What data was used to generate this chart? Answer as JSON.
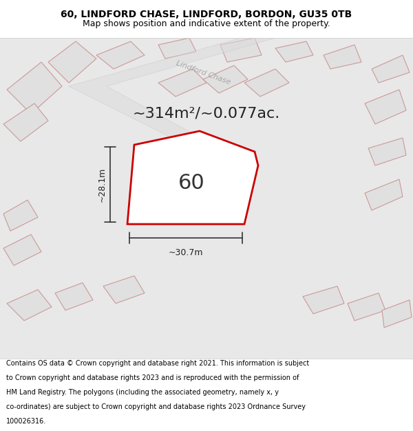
{
  "title_line1": "60, LINDFORD CHASE, LINDFORD, BORDON, GU35 0TB",
  "title_line2": "Map shows position and indicative extent of the property.",
  "area_label": "~314m²/~0.077ac.",
  "plot_number": "60",
  "dim_width": "~30.7m",
  "dim_height": "~28.1m",
  "footer_text": "Contains OS data © Crown copyright and database right 2021. This information is subject to Crown copyright and database rights 2023 and is reproduced with the permission of HM Land Registry. The polygons (including the associated geometry, namely x, y co-ordinates) are subject to Crown copyright and database rights 2023 Ordnance Survey 100026316.",
  "bg_color": "#e8e8e8",
  "map_bg_color": "#f5f5f5",
  "plot_fill": "#f5f5f5",
  "plot_edge_color": "#cc0000",
  "road_label_color": "#999999",
  "building_fill": "#e0e0e0",
  "building_edge": "#cc9999",
  "dim_line_color": "#333333",
  "title_bg": "#ffffff"
}
